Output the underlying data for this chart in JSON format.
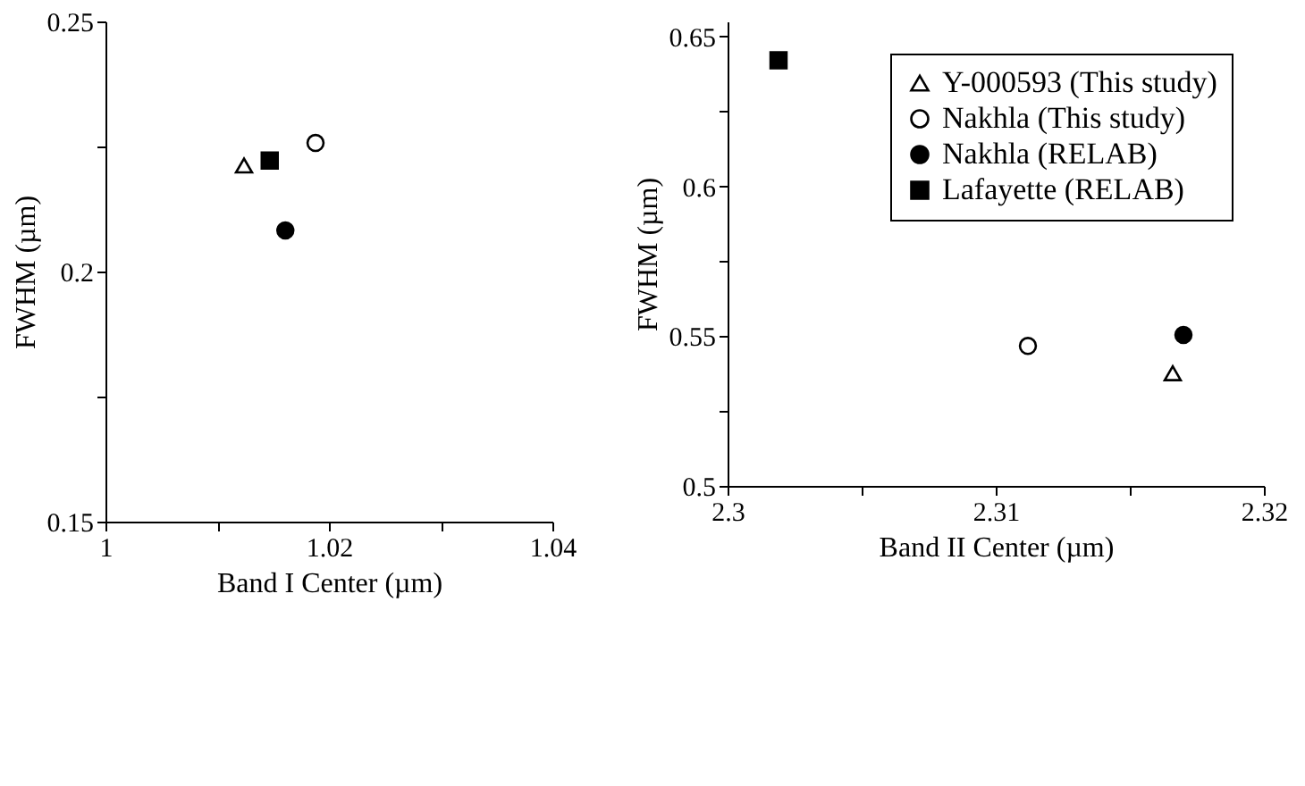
{
  "chart_data": [
    {
      "type": "scatter",
      "xlabel": "Band I Center (µm)",
      "ylabel": "FWHM (µm)",
      "xlim": [
        1,
        1.04
      ],
      "ylim": [
        0.15,
        0.25
      ],
      "xticks": [
        1,
        {
          "value": 1.01,
          "label": null
        },
        1.02,
        {
          "value": 1.03,
          "label": null
        },
        1.04
      ],
      "yticks": [
        0.15,
        {
          "value": 0.175,
          "label": null
        },
        0.2,
        {
          "value": 0.225,
          "label": null
        },
        0.25
      ],
      "grid": false,
      "legend": false,
      "series": [
        {
          "color": "#ffffff",
          "marker": "triangle",
          "x": [
            1.0124
          ],
          "values": [
            0.2212
          ]
        },
        {
          "color": "#ffffff",
          "marker": "circle",
          "x": [
            1.0188
          ],
          "values": [
            0.2257
          ]
        },
        {
          "color": "#000000",
          "marker": "circle",
          "x": [
            1.0161
          ],
          "values": [
            0.2082
          ]
        },
        {
          "color": "#000000",
          "marker": "square",
          "x": [
            1.0147
          ],
          "values": [
            0.2222
          ]
        }
      ]
    },
    {
      "type": "scatter",
      "xlabel": "Band II Center (µm)",
      "ylabel": "FWHM (µm)",
      "xlim": [
        2.3,
        2.32
      ],
      "ylim": [
        0.5,
        0.655
      ],
      "xticks": [
        2.3,
        {
          "value": 2.305,
          "label": null
        },
        2.31,
        {
          "value": 2.315,
          "label": null
        },
        2.32
      ],
      "yticks": [
        0.5,
        {
          "value": 0.525,
          "label": null
        },
        0.55,
        {
          "value": 0.575,
          "label": null
        },
        0.6,
        {
          "value": 0.625,
          "label": null
        },
        0.65
      ],
      "grid": false,
      "legend": "top right",
      "series": [
        {
          "name": "Y-000593 (This study)",
          "color": "#ffffff",
          "marker": "triangle",
          "x": [
            2.3166
          ],
          "values": [
            0.5376
          ]
        },
        {
          "name": "Nakhla (This study)",
          "color": "#ffffff",
          "marker": "circle",
          "x": [
            2.3112
          ],
          "values": [
            0.5467
          ]
        },
        {
          "name": "Nakhla (RELAB)",
          "color": "#000000",
          "marker": "circle",
          "x": [
            2.317
          ],
          "values": [
            0.5504
          ]
        },
        {
          "name": "Lafayette (RELAB)",
          "color": "#000000",
          "marker": "square",
          "x": [
            2.3019
          ],
          "values": [
            0.642
          ]
        }
      ]
    }
  ]
}
